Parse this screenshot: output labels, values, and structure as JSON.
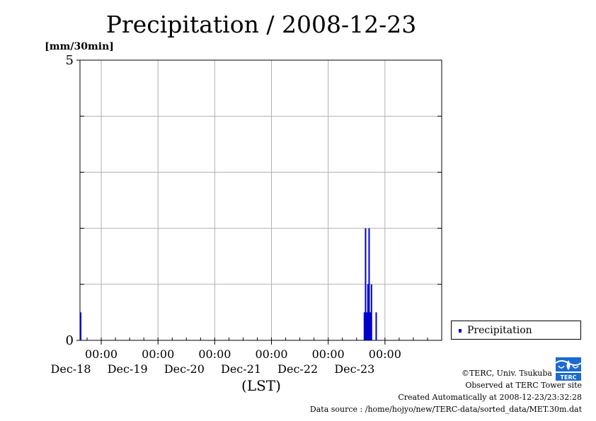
{
  "chart_data": {
    "type": "bar",
    "title": "Precipitation / 2008-12-23",
    "ylabel": "[mm/30min]",
    "xlabel": "(LST)",
    "ylim": [
      0,
      5
    ],
    "yticks": [
      0,
      5
    ],
    "x_range": [
      "2008-12-17 15:00",
      "2008-12-23 24:00"
    ],
    "x_ticks": [
      {
        "time": "00:00",
        "date": "Dec-18"
      },
      {
        "time": "00:00",
        "date": "Dec-19"
      },
      {
        "time": "00:00",
        "date": "Dec-20"
      },
      {
        "time": "00:00",
        "date": "Dec-21"
      },
      {
        "time": "00:00",
        "date": "Dec-22"
      },
      {
        "time": "00:00",
        "date": "Dec-23"
      }
    ],
    "grid": true,
    "legend_position": "bottom-right",
    "series": [
      {
        "name": "Precipitation",
        "color": "#0000cc",
        "points": [
          {
            "x": "2008-12-17 15:00",
            "y": 0.5
          },
          {
            "x": "2008-12-22 15:00",
            "y": 0.5
          },
          {
            "x": "2008-12-22 15:30",
            "y": 2.0
          },
          {
            "x": "2008-12-22 16:00",
            "y": 0.5
          },
          {
            "x": "2008-12-22 16:30",
            "y": 1.0
          },
          {
            "x": "2008-12-22 17:00",
            "y": 2.0
          },
          {
            "x": "2008-12-22 17:30",
            "y": 0.5
          },
          {
            "x": "2008-12-22 18:00",
            "y": 1.0
          },
          {
            "x": "2008-12-22 20:00",
            "y": 0.5
          }
        ]
      }
    ]
  },
  "legend": {
    "label": "Precipitation"
  },
  "footer": {
    "copyright": "©TERC, Univ. Tsukuba",
    "observed": "Observed at TERC Tower site",
    "created": "Created Automatically at 2008-12-23/23:32:28",
    "source": "Data source : /home/hojyo/new/TERC-data/sorted_data/MET.30m.dat"
  },
  "logo_text": "TERC"
}
